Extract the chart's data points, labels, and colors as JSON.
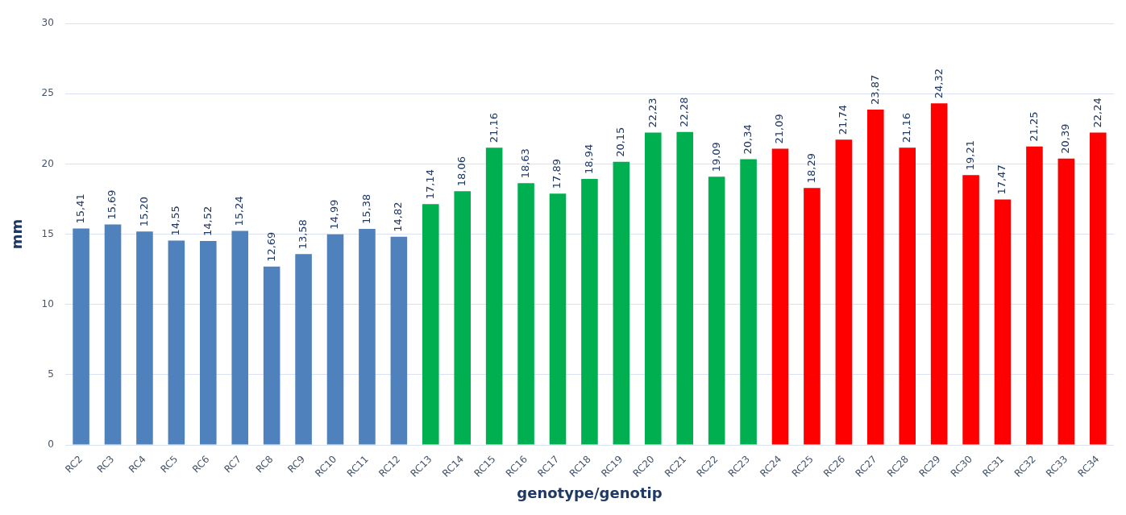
{
  "chart_data": {
    "type": "bar",
    "xlabel": "genotype/genotip",
    "ylabel": "mm",
    "categories": [
      "RC2",
      "RC3",
      "RC4",
      "RC5",
      "RC6",
      "RC7",
      "RC8",
      "RC9",
      "RC10",
      "RC11",
      "RC12",
      "RC13",
      "RC14",
      "RC15",
      "RC16",
      "RC17",
      "RC18",
      "RC19",
      "RC20",
      "RC21",
      "RC22",
      "RC23",
      "RC24",
      "RC25",
      "RC26",
      "RC27",
      "RC28",
      "RC29",
      "RC30",
      "RC31",
      "RC32",
      "RC33",
      "RC34"
    ],
    "values": [
      15.41,
      15.69,
      15.2,
      14.55,
      14.52,
      15.24,
      12.69,
      13.58,
      14.99,
      15.38,
      14.82,
      17.14,
      18.06,
      21.16,
      18.63,
      17.89,
      18.94,
      20.15,
      22.23,
      22.28,
      19.09,
      20.34,
      21.09,
      18.29,
      21.74,
      23.87,
      21.16,
      24.32,
      19.21,
      17.47,
      21.25,
      20.39,
      22.24
    ],
    "value_labels": [
      "15,41",
      "15,69",
      "15,20",
      "14,55",
      "14,52",
      "15,24",
      "12,69",
      "13,58",
      "14,99",
      "15,38",
      "14,82",
      "17,14",
      "18,06",
      "21,16",
      "18,63",
      "17,89",
      "18,94",
      "20,15",
      "22,23",
      "22,28",
      "19,09",
      "20,34",
      "21,09",
      "18,29",
      "21,74",
      "23,87",
      "21,16",
      "24,32",
      "19,21",
      "17,47",
      "21,25",
      "20,39",
      "22,24"
    ],
    "colors": [
      "#4f81bd",
      "#4f81bd",
      "#4f81bd",
      "#4f81bd",
      "#4f81bd",
      "#4f81bd",
      "#4f81bd",
      "#4f81bd",
      "#4f81bd",
      "#4f81bd",
      "#4f81bd",
      "#00b050",
      "#00b050",
      "#00b050",
      "#00b050",
      "#00b050",
      "#00b050",
      "#00b050",
      "#00b050",
      "#00b050",
      "#00b050",
      "#00b050",
      "#ff0000",
      "#ff0000",
      "#ff0000",
      "#ff0000",
      "#ff0000",
      "#ff0000",
      "#ff0000",
      "#ff0000",
      "#ff0000",
      "#ff0000",
      "#ff0000"
    ],
    "ylim": [
      0,
      30
    ],
    "yticks": [
      0,
      5,
      10,
      15,
      20,
      25,
      30
    ],
    "grid": "y",
    "legend": false
  }
}
